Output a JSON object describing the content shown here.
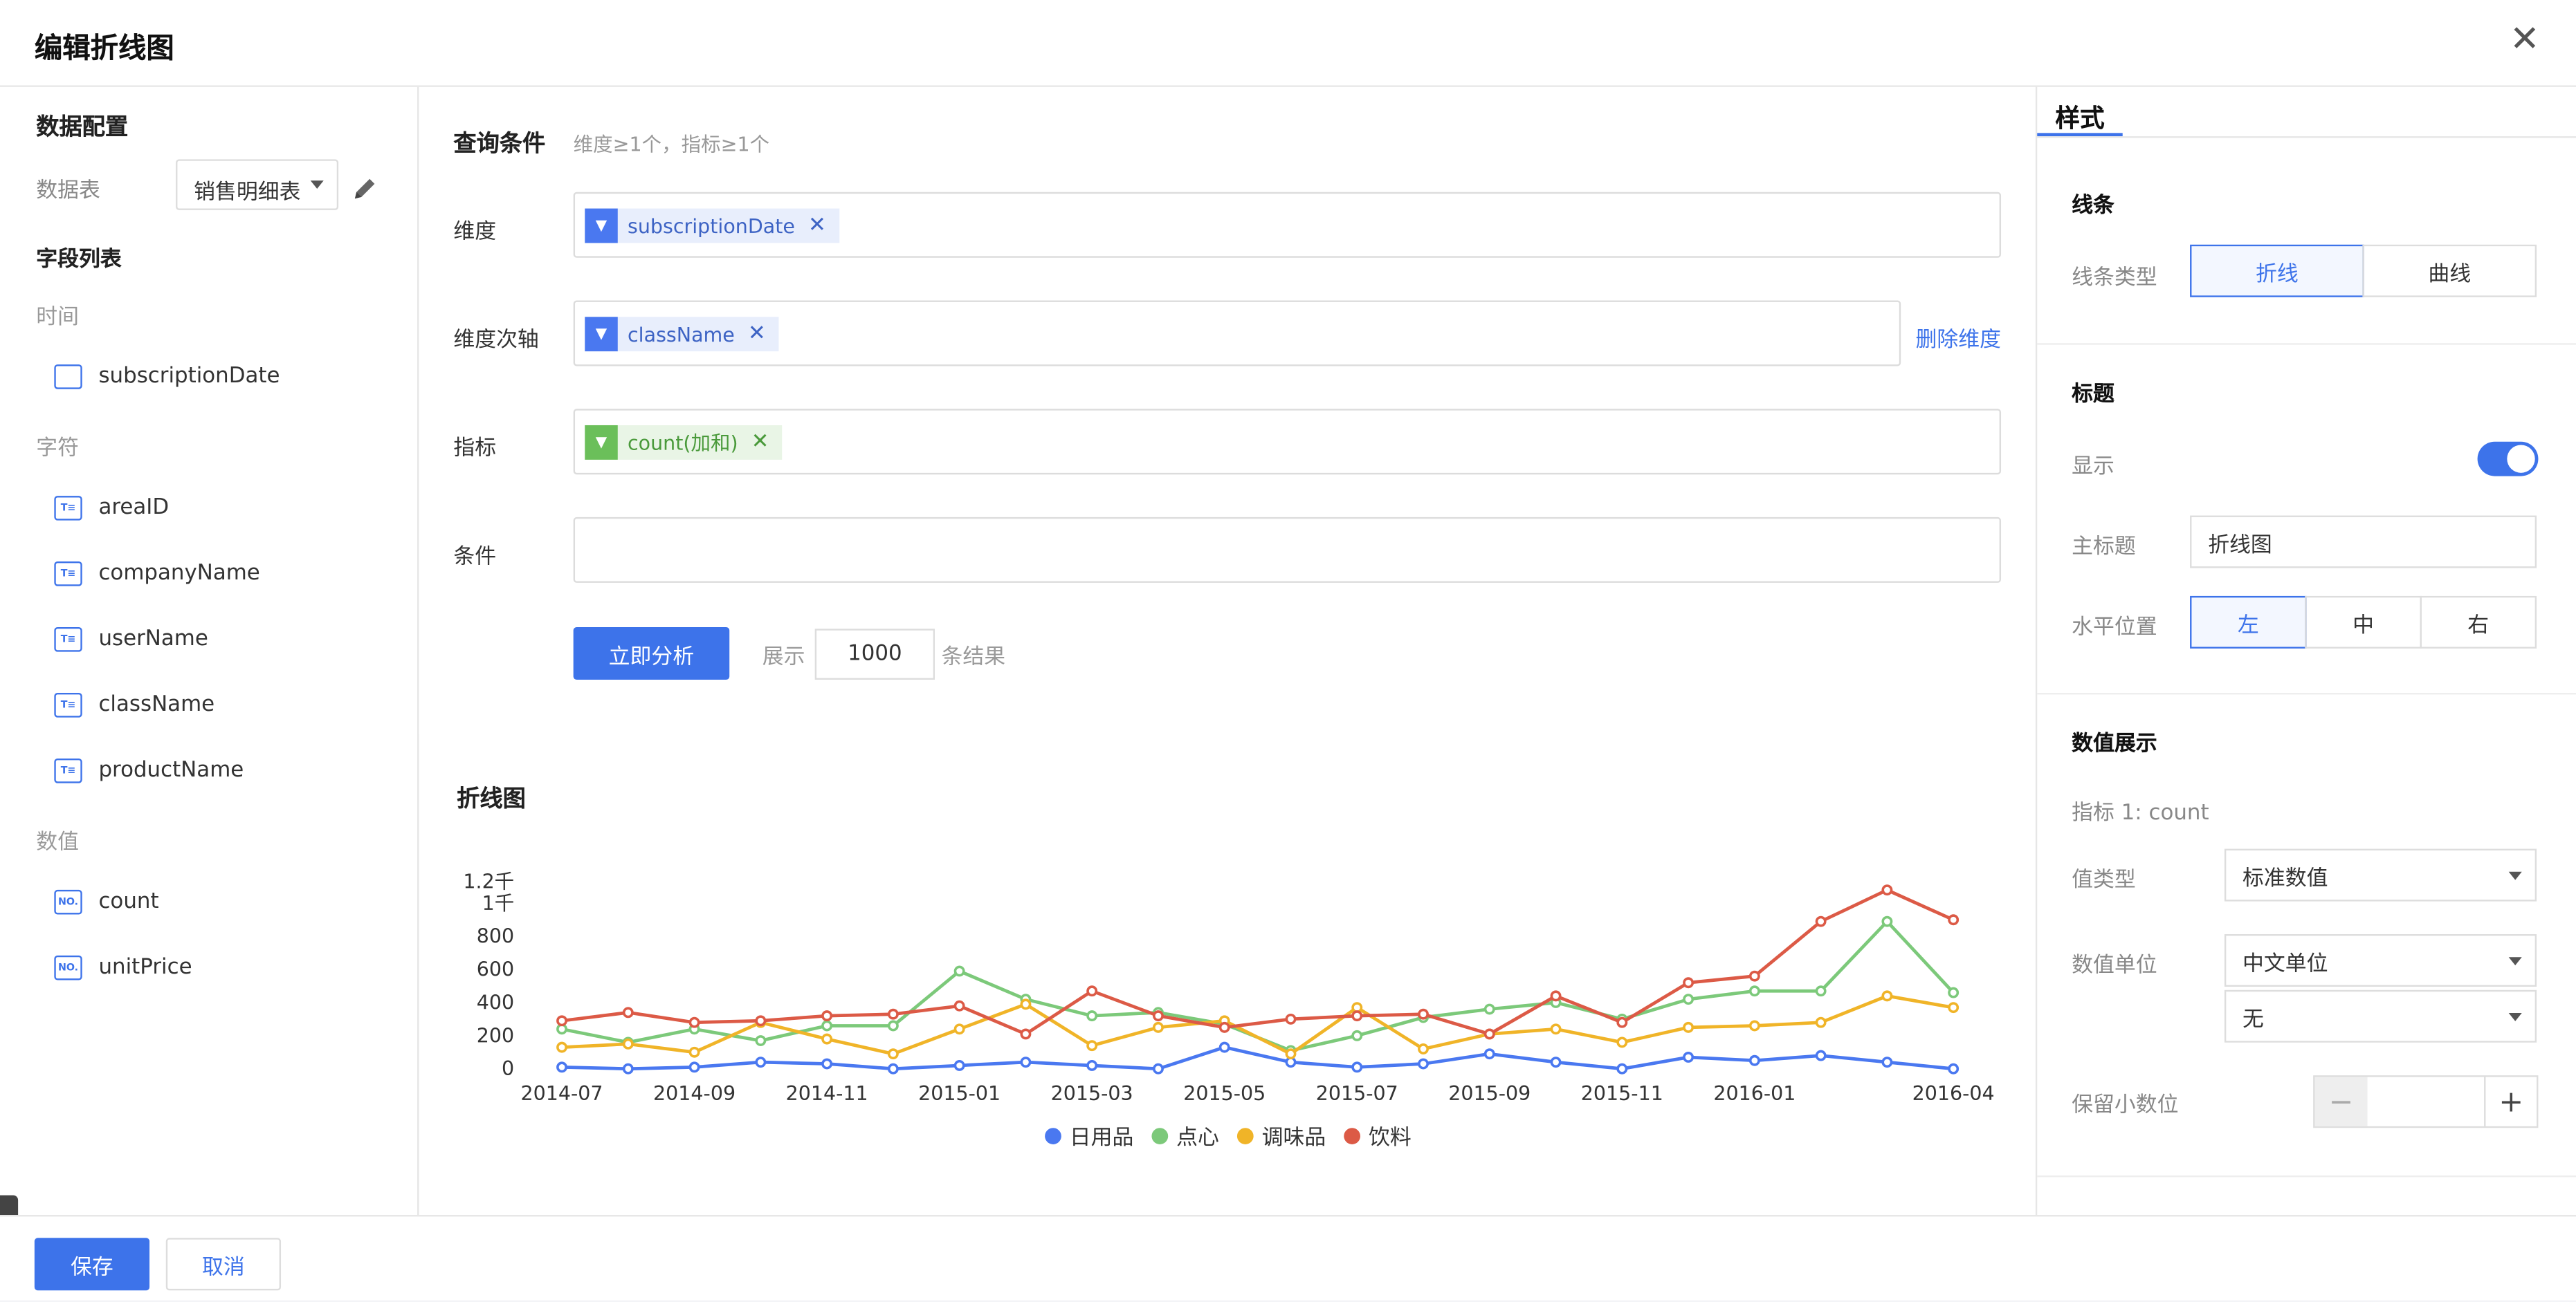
{
  "dialog": {
    "title": "编辑折线图"
  },
  "left": {
    "section_title": "数据配置",
    "table_label": "数据表",
    "table_value": "销售明细表",
    "fields_title": "字段列表",
    "groups": {
      "time": "时间",
      "text": "字符",
      "number": "数值"
    },
    "time_fields": [
      "subscriptionDate"
    ],
    "text_fields": [
      "areaID",
      "companyName",
      "userName",
      "className",
      "productName"
    ],
    "number_fields": [
      "count",
      "unitPrice"
    ]
  },
  "query": {
    "title": "查询条件",
    "hint": "维度≥1个，指标≥1个",
    "dimension_label": "维度",
    "dimension_tag": "subscriptionDate",
    "sub_axis_label": "维度次轴",
    "sub_axis_tag": "className",
    "delete_dimension": "删除维度",
    "metric_label": "指标",
    "metric_tag": "count(加和)",
    "condition_label": "条件",
    "analyze_button": "立即分析",
    "show_label": "展示",
    "show_count": "1000",
    "result_suffix": "条结果"
  },
  "chart_data": {
    "type": "line",
    "title": "折线图",
    "x": [
      "2014-07",
      "2014-08",
      "2014-09",
      "2014-10",
      "2014-11",
      "2014-12",
      "2015-01",
      "2015-02",
      "2015-03",
      "2015-04",
      "2015-05",
      "2015-06",
      "2015-07",
      "2015-08",
      "2015-09",
      "2015-10",
      "2015-11",
      "2015-12",
      "2016-01",
      "2016-02",
      "2016-03",
      "2016-04"
    ],
    "x_tick_labels": [
      "2014-07",
      "2014-09",
      "2014-11",
      "2015-01",
      "2015-03",
      "2015-05",
      "2015-07",
      "2015-09",
      "2015-11",
      "2016-01",
      "2016-04"
    ],
    "x_tick_index": [
      0,
      2,
      4,
      6,
      8,
      10,
      12,
      14,
      16,
      18,
      21
    ],
    "y_tick_labels": [
      "0",
      "200",
      "400",
      "600",
      "800",
      "1千",
      "1.2千"
    ],
    "ylim": [
      0,
      1200
    ],
    "series": [
      {
        "name": "日用品",
        "color": "#4a78f0",
        "values": [
          10,
          0,
          10,
          40,
          30,
          0,
          20,
          40,
          20,
          0,
          130,
          40,
          10,
          30,
          90,
          40,
          0,
          70,
          50,
          80,
          40,
          0
        ]
      },
      {
        "name": "点心",
        "color": "#7cc97a",
        "values": [
          240,
          160,
          240,
          170,
          260,
          260,
          590,
          420,
          320,
          340,
          270,
          110,
          200,
          310,
          360,
          400,
          300,
          420,
          470,
          470,
          890,
          460
        ]
      },
      {
        "name": "调味品",
        "color": "#f0b428",
        "values": [
          130,
          150,
          100,
          280,
          180,
          90,
          240,
          390,
          140,
          250,
          290,
          90,
          370,
          120,
          210,
          240,
          160,
          250,
          260,
          280,
          440,
          370
        ]
      },
      {
        "name": "饮料",
        "color": "#dc5a46",
        "values": [
          290,
          340,
          280,
          290,
          320,
          330,
          380,
          210,
          470,
          320,
          250,
          300,
          320,
          330,
          210,
          440,
          280,
          520,
          560,
          890,
          1080,
          900
        ]
      }
    ]
  },
  "style": {
    "tab": "样式",
    "line_section": "线条",
    "line_type_label": "线条类型",
    "line_type_options": [
      "折线",
      "曲线"
    ],
    "title_section": "标题",
    "show_label": "显示",
    "main_title_label": "主标题",
    "main_title_value": "折线图",
    "h_position_label": "水平位置",
    "h_position_options": [
      "左",
      "中",
      "右"
    ],
    "value_section": "数值展示",
    "metric_caption": "指标 1: count",
    "value_type_label": "值类型",
    "value_type": "标准数值",
    "unit_label": "数值单位",
    "unit_value": "中文单位",
    "unit_suffix": "无",
    "decimal_label": "保留小数位",
    "decimal_minus": "−",
    "decimal_plus": "+"
  },
  "footer": {
    "save": "保存",
    "cancel": "取消"
  }
}
